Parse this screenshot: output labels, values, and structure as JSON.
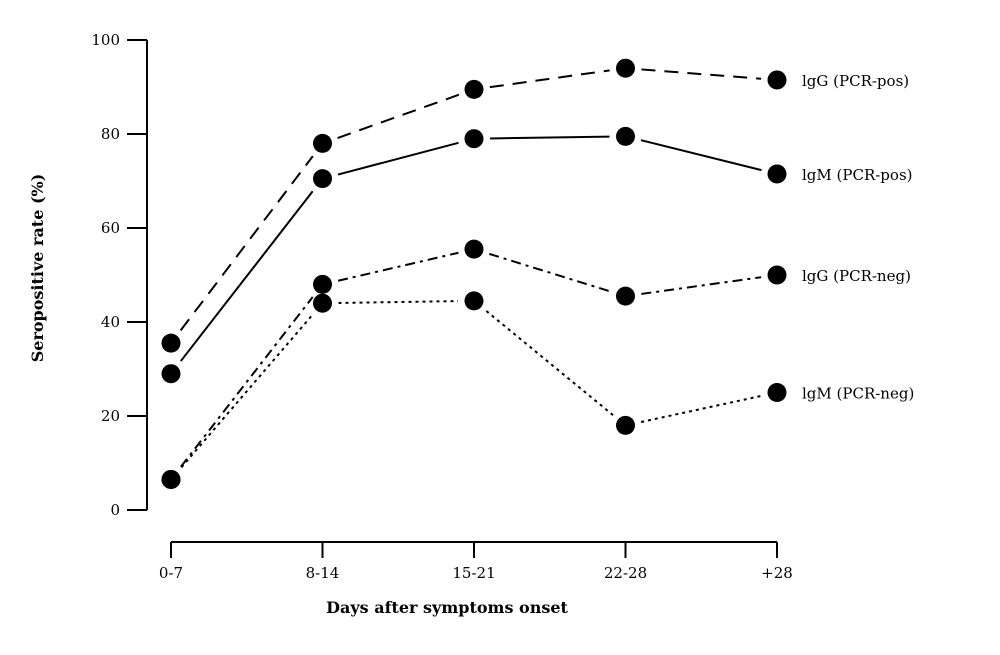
{
  "chart_data": {
    "type": "line",
    "title": "",
    "xlabel": "Days after symptoms onset",
    "ylabel": "Seropositive rate (%)",
    "categories": [
      "0-7",
      "8-14",
      "15-21",
      "22-28",
      "+28"
    ],
    "ylim": [
      0,
      100
    ],
    "yticks": [
      0,
      20,
      40,
      60,
      80,
      100
    ],
    "grid": false,
    "legend": "labels at line ends (right)",
    "series": [
      {
        "name": "lgG (PCR-pos)",
        "values": [
          35.5,
          78,
          89.5,
          94,
          91.5
        ],
        "line_style": "dashed"
      },
      {
        "name": "lgM  (PCR-pos)",
        "values": [
          29,
          70.5,
          79,
          79.5,
          71.5
        ],
        "line_style": "solid"
      },
      {
        "name": "lgG (PCR-neg)",
        "values": [
          6.5,
          48,
          55.5,
          45.5,
          50
        ],
        "line_style": "dash-dot"
      },
      {
        "name": "lgM  (PCR-neg)",
        "values": [
          6.5,
          44,
          44.5,
          18,
          25
        ],
        "line_style": "dotted"
      }
    ],
    "colors": {
      "lines": "#000000",
      "markers": "#000000"
    }
  }
}
